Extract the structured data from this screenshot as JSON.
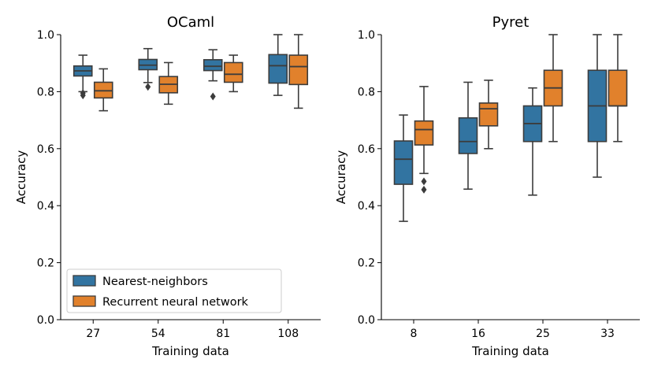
{
  "chart_data": [
    {
      "type": "box",
      "title": "OCaml",
      "xlabel": "Training data",
      "ylabel": "Accuracy",
      "ylim": [
        0.0,
        1.0
      ],
      "yticks": [
        "0.0",
        "0.2",
        "0.4",
        "0.6",
        "0.8",
        "1.0"
      ],
      "categories": [
        "27",
        "54",
        "81",
        "108"
      ],
      "legend": {
        "location": "lower-left",
        "entries": [
          "Nearest-neighbors",
          "Recurrent neural network"
        ]
      },
      "series": [
        {
          "name": "Nearest-neighbors",
          "color": "#3274a1",
          "boxes": [
            {
              "whislo": 0.8,
              "q1": 0.855,
              "med": 0.873,
              "q3": 0.89,
              "whishi": 0.928,
              "fliers": [
                0.787,
                0.795
              ]
            },
            {
              "whislo": 0.832,
              "q1": 0.877,
              "med": 0.893,
              "q3": 0.913,
              "whishi": 0.951,
              "fliers": [
                0.817
              ]
            },
            {
              "whislo": 0.838,
              "q1": 0.874,
              "med": 0.889,
              "q3": 0.912,
              "whishi": 0.947,
              "fliers": [
                0.783
              ]
            },
            {
              "whislo": 0.787,
              "q1": 0.83,
              "med": 0.891,
              "q3": 0.93,
              "whishi": 1.0,
              "fliers": []
            }
          ]
        },
        {
          "name": "Recurrent neural network",
          "color": "#e1812c",
          "boxes": [
            {
              "whislo": 0.733,
              "q1": 0.778,
              "med": 0.803,
              "q3": 0.833,
              "whishi": 0.88,
              "fliers": []
            },
            {
              "whislo": 0.756,
              "q1": 0.796,
              "med": 0.826,
              "q3": 0.853,
              "whishi": 0.902,
              "fliers": []
            },
            {
              "whislo": 0.8,
              "q1": 0.833,
              "med": 0.861,
              "q3": 0.902,
              "whishi": 0.928,
              "fliers": []
            },
            {
              "whislo": 0.742,
              "q1": 0.825,
              "med": 0.888,
              "q3": 0.928,
              "whishi": 1.0,
              "fliers": []
            }
          ]
        }
      ]
    },
    {
      "type": "box",
      "title": "Pyret",
      "xlabel": "Training data",
      "ylabel": "Accuracy",
      "ylim": [
        0.0,
        1.0
      ],
      "yticks": [
        "0.0",
        "0.2",
        "0.4",
        "0.6",
        "0.8",
        "1.0"
      ],
      "categories": [
        "8",
        "16",
        "25",
        "33"
      ],
      "series": [
        {
          "name": "Nearest-neighbors",
          "color": "#3274a1",
          "boxes": [
            {
              "whislo": 0.345,
              "q1": 0.475,
              "med": 0.563,
              "q3": 0.627,
              "whishi": 0.718,
              "fliers": []
            },
            {
              "whislo": 0.458,
              "q1": 0.583,
              "med": 0.625,
              "q3": 0.708,
              "whishi": 0.833,
              "fliers": []
            },
            {
              "whislo": 0.437,
              "q1": 0.625,
              "med": 0.688,
              "q3": 0.75,
              "whishi": 0.813,
              "fliers": []
            },
            {
              "whislo": 0.5,
              "q1": 0.625,
              "med": 0.75,
              "q3": 0.875,
              "whishi": 1.0,
              "fliers": []
            }
          ]
        },
        {
          "name": "Recurrent neural network",
          "color": "#e1812c",
          "boxes": [
            {
              "whislo": 0.513,
              "q1": 0.613,
              "med": 0.667,
              "q3": 0.697,
              "whishi": 0.818,
              "fliers": [
                0.485,
                0.456
              ]
            },
            {
              "whislo": 0.6,
              "q1": 0.68,
              "med": 0.74,
              "q3": 0.76,
              "whishi": 0.84,
              "fliers": []
            },
            {
              "whislo": 0.625,
              "q1": 0.75,
              "med": 0.813,
              "q3": 0.875,
              "whishi": 1.0,
              "fliers": []
            },
            {
              "whislo": 0.625,
              "q1": 0.75,
              "med": 0.75,
              "q3": 0.875,
              "whishi": 1.0,
              "fliers": []
            }
          ]
        }
      ]
    }
  ]
}
